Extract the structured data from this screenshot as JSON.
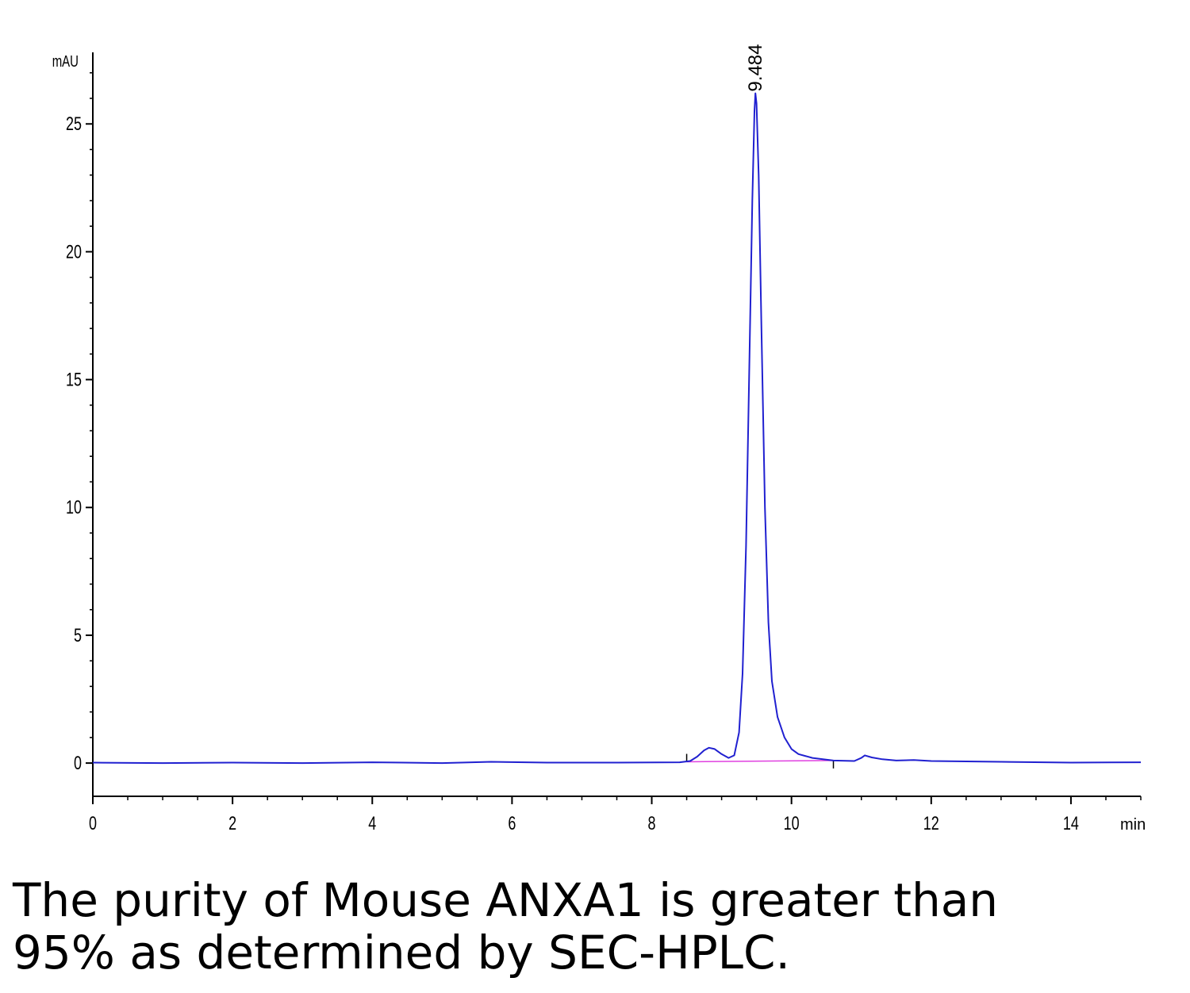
{
  "chart_data": {
    "type": "line",
    "title": "",
    "xlabel": "min",
    "ylabel": "mAU",
    "xlim": [
      0,
      15
    ],
    "ylim": [
      -1.3,
      27.8
    ],
    "x_ticks": [
      0,
      2,
      4,
      6,
      8,
      10,
      12,
      14
    ],
    "y_ticks": [
      0,
      5,
      10,
      15,
      20,
      25
    ],
    "grid": false,
    "legend": "none",
    "series": [
      {
        "color": "#2020d0",
        "points": [
          [
            0.0,
            0.02
          ],
          [
            1.0,
            0.0
          ],
          [
            2.0,
            0.02
          ],
          [
            3.0,
            0.0
          ],
          [
            4.0,
            0.03
          ],
          [
            5.0,
            0.0
          ],
          [
            5.7,
            0.05
          ],
          [
            6.5,
            0.02
          ],
          [
            7.5,
            0.02
          ],
          [
            8.4,
            0.03
          ],
          [
            8.55,
            0.08
          ],
          [
            8.65,
            0.25
          ],
          [
            8.75,
            0.5
          ],
          [
            8.82,
            0.6
          ],
          [
            8.9,
            0.55
          ],
          [
            9.0,
            0.35
          ],
          [
            9.1,
            0.2
          ],
          [
            9.18,
            0.3
          ],
          [
            9.25,
            1.2
          ],
          [
            9.3,
            3.5
          ],
          [
            9.35,
            8.5
          ],
          [
            9.4,
            16.0
          ],
          [
            9.44,
            22.0
          ],
          [
            9.47,
            25.5
          ],
          [
            9.484,
            26.2
          ],
          [
            9.5,
            25.8
          ],
          [
            9.53,
            23.0
          ],
          [
            9.57,
            17.0
          ],
          [
            9.62,
            10.0
          ],
          [
            9.67,
            5.5
          ],
          [
            9.72,
            3.2
          ],
          [
            9.8,
            1.8
          ],
          [
            9.9,
            1.0
          ],
          [
            10.0,
            0.55
          ],
          [
            10.1,
            0.35
          ],
          [
            10.3,
            0.2
          ],
          [
            10.6,
            0.1
          ],
          [
            10.9,
            0.08
          ],
          [
            11.0,
            0.2
          ],
          [
            11.05,
            0.3
          ],
          [
            11.15,
            0.22
          ],
          [
            11.3,
            0.15
          ],
          [
            11.5,
            0.1
          ],
          [
            11.75,
            0.12
          ],
          [
            12.0,
            0.08
          ],
          [
            13.0,
            0.05
          ],
          [
            14.0,
            0.02
          ],
          [
            15.0,
            0.03
          ]
        ]
      }
    ],
    "baseline": {
      "color": "#e040e0",
      "x": [
        8.5,
        10.6
      ],
      "y": [
        0.05,
        0.1
      ]
    },
    "annotations": [
      {
        "label": "9.484",
        "x": 9.484,
        "y": 26.2
      }
    ]
  },
  "caption": {
    "line1": "The purity of Mouse ANXA1 is greater than",
    "line2": "95% as determined by SEC-HPLC."
  }
}
